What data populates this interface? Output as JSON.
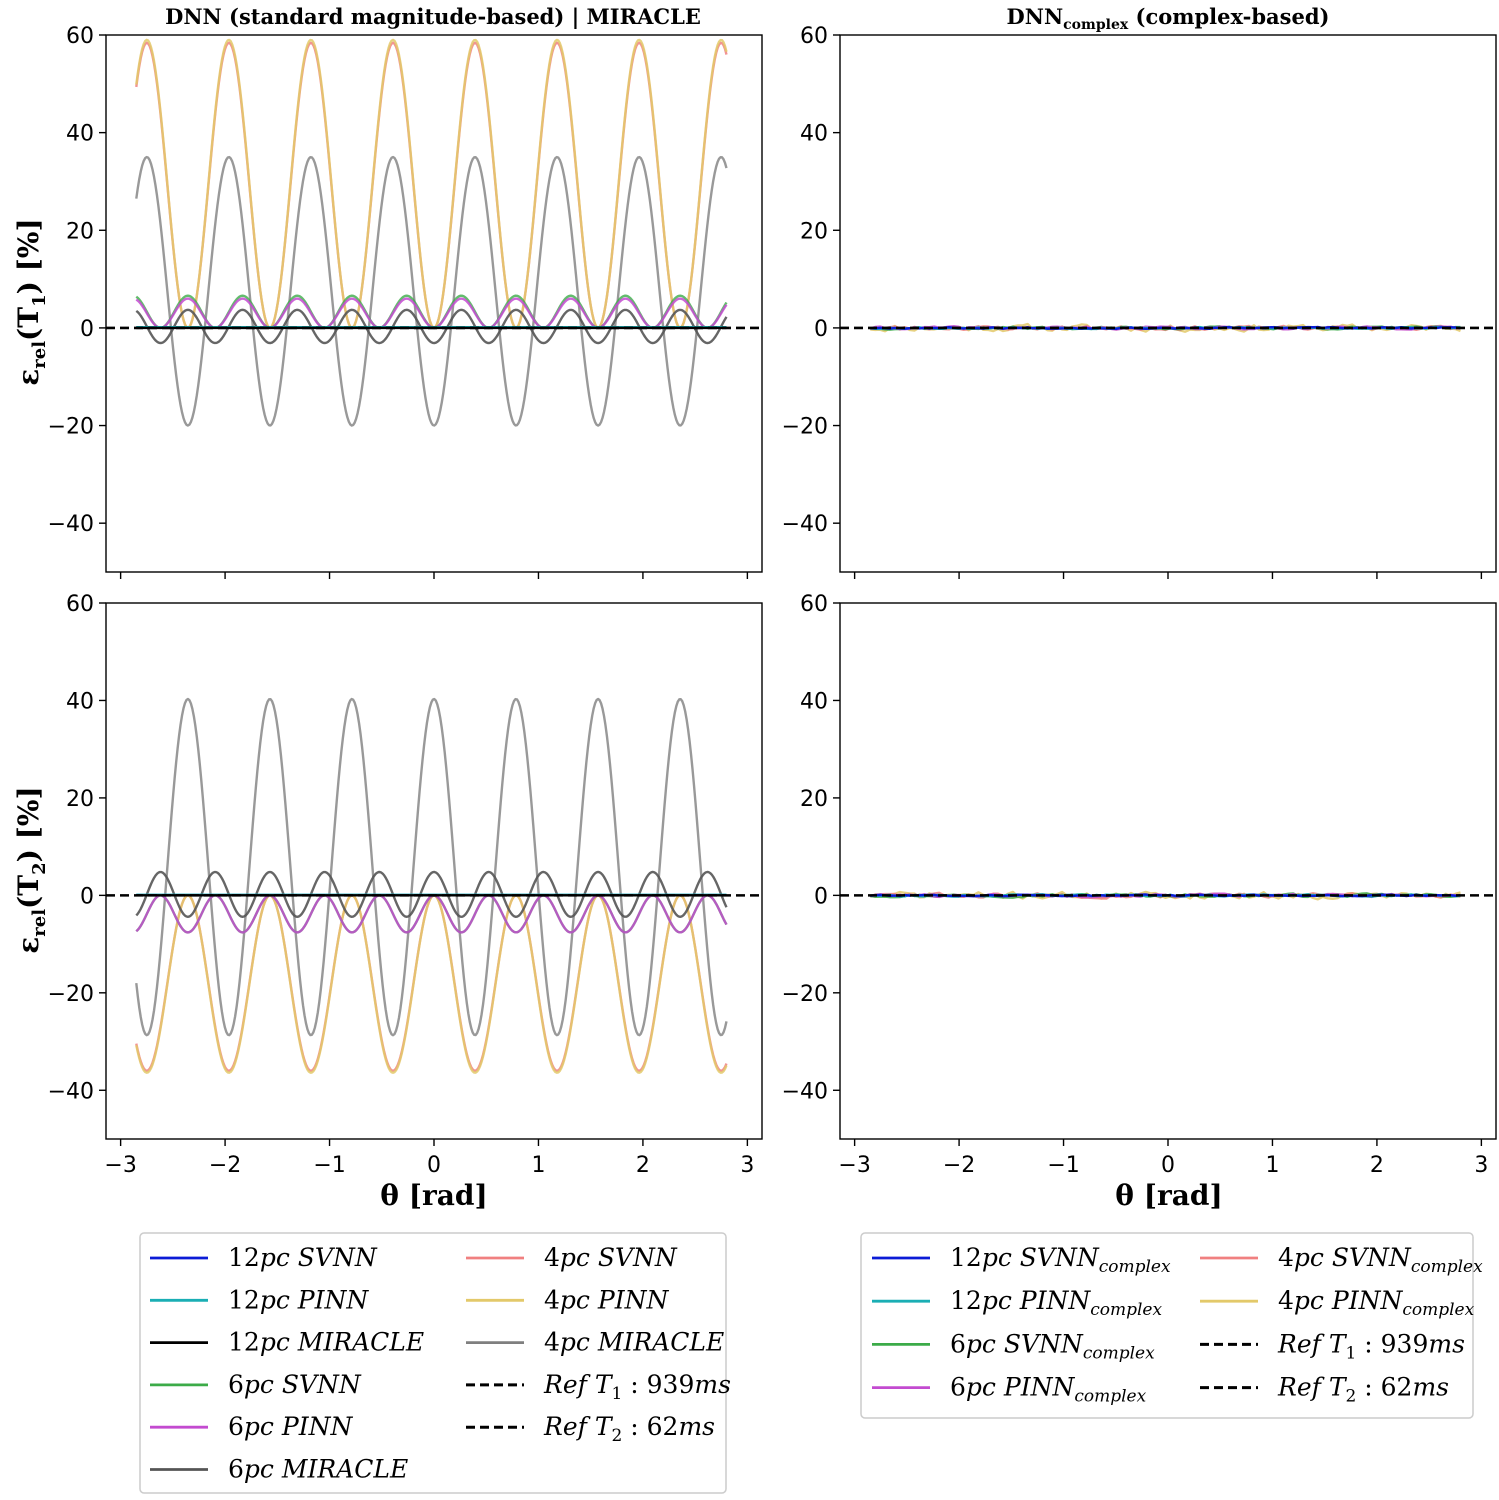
{
  "chart_data": {
    "type": "line",
    "title_left": "DNN (standard magnitude-based) | MIRACLE",
    "title_right_main": "DNN",
    "title_right_sub": "complex",
    "title_right_rest": " (complex-based)",
    "ylabel_top": {
      "eps": "ε",
      "sub": "rel",
      "rest": "(T",
      "idx": "1",
      "tail": ") [%]"
    },
    "ylabel_bottom": {
      "eps": "ε",
      "sub": "rel",
      "rest": "(T",
      "idx": "2",
      "tail": ") [%]"
    },
    "xlabel": "θ [rad]",
    "xlim": [
      -3.14,
      3.14
    ],
    "ylim": [
      -50,
      60
    ],
    "xticks": [
      -3,
      -2,
      -1,
      0,
      1,
      2,
      3
    ],
    "yticks": [
      -40,
      -20,
      0,
      20,
      40,
      60
    ],
    "x_range": [
      -2.85,
      2.8
    ],
    "reference_line_y": 0,
    "panels": [
      {
        "name": "T1 standard",
        "series": [
          {
            "name": "4pc SVNN",
            "color": "#f08080",
            "alpha": 0.85,
            "formula": {
              "offset": 29.2,
              "amp": -29.2,
              "freq": 8,
              "phase": 0
            }
          },
          {
            "name": "4pc PINN",
            "color": "#e3c96a",
            "alpha": 0.85,
            "formula": {
              "offset": 29.5,
              "amp": -29.5,
              "freq": 8,
              "phase": 0
            }
          },
          {
            "name": "4pc MIRACLE",
            "color": "#7f7f7f",
            "alpha": 0.8,
            "formula": {
              "offset": 7.5,
              "amp": -27.5,
              "freq": 8,
              "phase": 0
            }
          },
          {
            "name": "6pc SVNN",
            "color": "#3cab48",
            "alpha": 0.8,
            "formula": {
              "offset": 3.3,
              "amp": -3.3,
              "freq": 12,
              "phase": 0
            }
          },
          {
            "name": "6pc PINN",
            "color": "#c34bd0",
            "alpha": 0.85,
            "formula": {
              "offset": 3.0,
              "amp": -3.0,
              "freq": 12,
              "phase": 0
            }
          },
          {
            "name": "6pc MIRACLE",
            "color": "#555555",
            "alpha": 0.9,
            "formula": {
              "offset": 0.3,
              "amp": -3.4,
              "freq": 12,
              "phase": 0
            }
          },
          {
            "name": "12pc SVNN",
            "color": "#0b1cd6",
            "alpha": 1,
            "formula": {
              "offset": 0.1,
              "amp": 0,
              "freq": 0,
              "phase": 0
            }
          },
          {
            "name": "12pc PINN",
            "color": "#1aaeb4",
            "alpha": 1,
            "formula": {
              "offset": 0.15,
              "amp": 0,
              "freq": 0,
              "phase": 0
            }
          },
          {
            "name": "12pc MIRACLE",
            "color": "#000000",
            "alpha": 1,
            "formula": {
              "offset": 0,
              "amp": 0,
              "freq": 0,
              "phase": 0
            }
          }
        ]
      },
      {
        "name": "T1 complex",
        "series": [
          {
            "name": "4pc PINNcomplex",
            "color": "#e3c96a",
            "alpha": 0.85,
            "noise": 1.1,
            "seed": 11
          },
          {
            "name": "4pc SVNNcomplex",
            "color": "#f08080",
            "alpha": 0.85,
            "noise": 0.6,
            "seed": 23
          },
          {
            "name": "6pc SVNNcomplex",
            "color": "#3cab48",
            "alpha": 0.85,
            "noise": 0.45,
            "seed": 37
          },
          {
            "name": "6pc PINNcomplex",
            "color": "#c34bd0",
            "alpha": 0.85,
            "noise": 0.45,
            "seed": 41
          },
          {
            "name": "12pc PINNcomplex",
            "color": "#1aaeb4",
            "alpha": 1,
            "noise": 0.3,
            "seed": 53
          },
          {
            "name": "12pc SVNNcomplex",
            "color": "#0b1cd6",
            "alpha": 1,
            "noise": 0.25,
            "seed": 67
          }
        ]
      },
      {
        "name": "T2 standard",
        "series": [
          {
            "name": "4pc SVNN",
            "color": "#f08080",
            "alpha": 0.85,
            "formula": {
              "offset": -18,
              "amp": 18,
              "freq": 8,
              "phase": 0
            }
          },
          {
            "name": "4pc PINN",
            "color": "#e3c96a",
            "alpha": 0.85,
            "formula": {
              "offset": -18.2,
              "amp": 18.2,
              "freq": 8,
              "phase": 0
            }
          },
          {
            "name": "4pc MIRACLE",
            "color": "#7f7f7f",
            "alpha": 0.8,
            "formula": {
              "offset": 5.8,
              "amp": 34.5,
              "freq": 8,
              "phase": 0
            }
          },
          {
            "name": "6pc SVNN",
            "color": "#3cab48",
            "alpha": 0.8,
            "formula": {
              "offset": -3.8,
              "amp": 3.8,
              "freq": 12,
              "phase": 0
            }
          },
          {
            "name": "6pc PINN",
            "color": "#c34bd0",
            "alpha": 0.85,
            "formula": {
              "offset": -3.8,
              "amp": 3.8,
              "freq": 12,
              "phase": 0
            }
          },
          {
            "name": "6pc MIRACLE",
            "color": "#555555",
            "alpha": 0.9,
            "formula": {
              "offset": 0.2,
              "amp": 4.6,
              "freq": 12,
              "phase": 0
            }
          },
          {
            "name": "12pc SVNN",
            "color": "#0b1cd6",
            "alpha": 1,
            "formula": {
              "offset": 0.05,
              "amp": 0,
              "freq": 0,
              "phase": 0
            }
          },
          {
            "name": "12pc PINN",
            "color": "#1aaeb4",
            "alpha": 1,
            "formula": {
              "offset": 0.1,
              "amp": 0,
              "freq": 0,
              "phase": 0
            }
          },
          {
            "name": "12pc MIRACLE",
            "color": "#000000",
            "alpha": 1,
            "formula": {
              "offset": 0,
              "amp": 0,
              "freq": 0,
              "phase": 0
            }
          }
        ]
      },
      {
        "name": "T2 complex",
        "series": [
          {
            "name": "4pc PINNcomplex",
            "color": "#e3c96a",
            "alpha": 0.85,
            "noise": 1.1,
            "seed": 71
          },
          {
            "name": "4pc SVNNcomplex",
            "color": "#f08080",
            "alpha": 0.85,
            "noise": 0.7,
            "seed": 83
          },
          {
            "name": "6pc SVNNcomplex",
            "color": "#3cab48",
            "alpha": 0.85,
            "noise": 0.5,
            "seed": 97
          },
          {
            "name": "6pc PINNcomplex",
            "color": "#c34bd0",
            "alpha": 0.85,
            "noise": 0.45,
            "seed": 101
          },
          {
            "name": "12pc PINNcomplex",
            "color": "#1aaeb4",
            "alpha": 1,
            "noise": 0.3,
            "seed": 113
          },
          {
            "name": "12pc SVNNcomplex",
            "color": "#0b1cd6",
            "alpha": 1,
            "noise": 0.25,
            "seed": 127
          }
        ]
      }
    ],
    "legend_left": {
      "col1": [
        {
          "n": "12",
          "pc": "pc",
          "name": " SVNN",
          "color": "#0b1cd6"
        },
        {
          "n": "12",
          "pc": "pc",
          "name": " PINN",
          "color": "#1aaeb4"
        },
        {
          "n": "12",
          "pc": "pc",
          "name": " MIRACLE",
          "color": "#000000"
        },
        {
          "n": "6",
          "pc": "pc",
          "name": " SVNN",
          "color": "#3cab48"
        },
        {
          "n": "6",
          "pc": "pc",
          "name": " PINN",
          "color": "#c34bd0"
        },
        {
          "n": "6",
          "pc": "pc",
          "name": " MIRACLE",
          "color": "#555555"
        }
      ],
      "col2": [
        {
          "n": "4",
          "pc": "pc",
          "name": " SVNN",
          "color": "#f08080"
        },
        {
          "n": "4",
          "pc": "pc",
          "name": " PINN",
          "color": "#e3c96a"
        },
        {
          "n": "4",
          "pc": "pc",
          "name": " MIRACLE",
          "color": "#7f7f7f"
        }
      ],
      "refs": [
        {
          "pre": "Ref T",
          "idx": "1",
          "post": " : 939",
          "unit": "ms"
        },
        {
          "pre": "Ref T",
          "idx": "2",
          "post": " : 62",
          "unit": "ms"
        }
      ]
    },
    "legend_right": {
      "col1": [
        {
          "n": "12",
          "pc": "pc",
          "name": " SVNN",
          "sub": "complex",
          "color": "#0b1cd6"
        },
        {
          "n": "12",
          "pc": "pc",
          "name": " PINN",
          "sub": "complex",
          "color": "#1aaeb4"
        },
        {
          "n": "6",
          "pc": "pc",
          "name": " SVNN",
          "sub": "complex",
          "color": "#3cab48"
        },
        {
          "n": "6",
          "pc": "pc",
          "name": " PINN",
          "sub": "complex",
          "color": "#c34bd0"
        }
      ],
      "col2": [
        {
          "n": "4",
          "pc": "pc",
          "name": " SVNN",
          "sub": "complex",
          "color": "#f08080"
        },
        {
          "n": "4",
          "pc": "pc",
          "name": " PINN",
          "sub": "complex",
          "color": "#e3c96a"
        }
      ],
      "refs": [
        {
          "pre": "Ref T",
          "idx": "1",
          "post": " : 939",
          "unit": "ms"
        },
        {
          "pre": "Ref T",
          "idx": "2",
          "post": " : 62",
          "unit": "ms"
        }
      ]
    }
  }
}
